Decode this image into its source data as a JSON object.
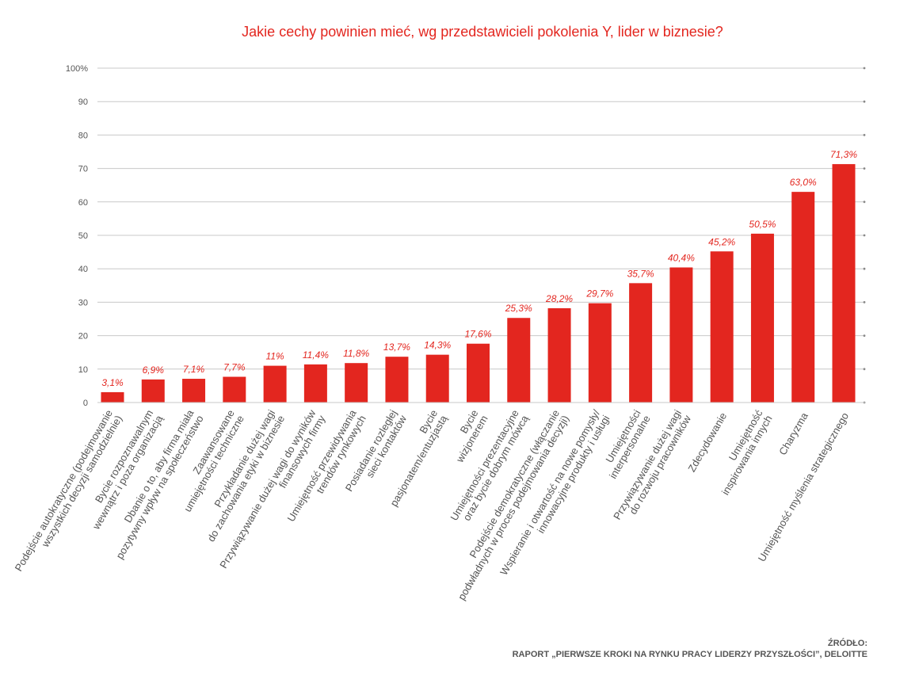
{
  "chart_data": {
    "type": "bar",
    "title": "Jakie cechy powinien mieć, wg przedstawicieli pokolenia Y, lider w biznesie?",
    "categories": [
      [
        "Podejście autokratyczne (podejmowanie",
        "wszystkich decyzji samodzielnie)"
      ],
      [
        "Bycie rozpoznawalnym",
        "wewnątrz i poza organizacją"
      ],
      [
        "Dbanie o to, aby firma miała",
        "pozytywny wpływ na społeczeństwo"
      ],
      [
        "Zaawansowane",
        "umiejętności techniczne"
      ],
      [
        "Przykładanie dużej wagi",
        "do zachowania etyki w biznesie"
      ],
      [
        "Przywiązywanie dużej wagi do wyników",
        "finansowych firmy"
      ],
      [
        "Umiejętność przewidywania",
        "trendów rynkowych"
      ],
      [
        "Posiadanie rozległej",
        "sieci kontaktów"
      ],
      [
        "Bycie",
        "pasjonatem/entuzjastą"
      ],
      [
        "Bycie",
        "wizjonerem"
      ],
      [
        "Umiejętności prezentacyjne",
        "oraz bycie dobrym mówcą"
      ],
      [
        "Podejście demokratyczne (włączanie",
        "podwładnych w proces podejmowania decyzji)"
      ],
      [
        "Wspieranie i otwartość na nowe pomysły/",
        "innowacyjne produkty i usługi"
      ],
      [
        "Umiejętności",
        "interpersonalne"
      ],
      [
        "Przywiązywanie dużej wagi",
        "do rozwoju pracowników"
      ],
      [
        "Zdecydowanie"
      ],
      [
        "Umiejętność",
        "inspirowania innych"
      ],
      [
        "Charyzma"
      ],
      [
        "Umiejętność myślenia strategicznego"
      ]
    ],
    "values": [
      3.1,
      6.9,
      7.1,
      7.7,
      11,
      11.4,
      11.8,
      13.7,
      14.3,
      17.6,
      25.3,
      28.2,
      29.7,
      35.7,
      40.4,
      45.2,
      50.5,
      63.0,
      71.3
    ],
    "data_labels": [
      "3,1%",
      "6,9%",
      "7,1%",
      "7,7%",
      "11%",
      "11,4%",
      "11,8%",
      "13,7%",
      "14,3%",
      "17,6%",
      "25,3%",
      "28,2%",
      "29,7%",
      "35,7%",
      "40,4%",
      "45,2%",
      "50,5%",
      "63,0%",
      "71,3%"
    ],
    "y_ticks": [
      0,
      10,
      20,
      30,
      40,
      50,
      60,
      70,
      80,
      90,
      100
    ],
    "y_tick_labels": [
      "0",
      "10",
      "20",
      "30",
      "40",
      "50",
      "60",
      "70",
      "80",
      "90",
      "100%"
    ],
    "ylim": [
      0,
      100
    ],
    "grid": true,
    "colors": {
      "bar": "#e3261f",
      "label": "#e3261f",
      "grid": "#c8c8c8",
      "tick": "#555555"
    }
  },
  "source": {
    "label": "ŹRÓDŁO:",
    "text": "RAPORT „PIERWSZE KROKI NA RYNKU PRACY LIDERZY PRZYSZŁOŚCI”, DELOITTE"
  }
}
